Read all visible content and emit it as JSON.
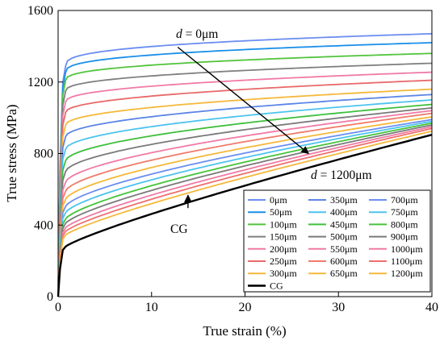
{
  "chart_data": {
    "type": "line",
    "xlabel": "True strain (%)",
    "ylabel": "True stress (MPa)",
    "xlim": [
      0,
      40
    ],
    "ylim": [
      0,
      1600
    ],
    "xticks": [
      0,
      10,
      20,
      30,
      40
    ],
    "yticks": [
      0,
      400,
      800,
      1200,
      1600
    ],
    "grid": false,
    "legend_position": "bottom-right",
    "legend_columns": 3,
    "annotations": [
      {
        "id": "top",
        "text_italic": "d",
        "text_rest": " = 0μm",
        "arrow_from": [
          12.8,
          1395
        ],
        "arrow_to": [
          26.8,
          800
        ]
      },
      {
        "id": "bottom",
        "text_italic": "d",
        "text_rest": " = 1200μm"
      },
      {
        "id": "cg",
        "text_italic": "",
        "text_rest": "CG",
        "arrow_from": [
          13.9,
          495
        ],
        "arrow_to": [
          13.9,
          567
        ]
      }
    ],
    "series": [
      {
        "name": "0μm",
        "color": "#6b8ef0",
        "yield": 1290,
        "end": 1470
      },
      {
        "name": "50μm",
        "color": "#1a8fe8",
        "yield": 1255,
        "end": 1420
      },
      {
        "name": "100μm",
        "color": "#52c43c",
        "yield": 1210,
        "end": 1360
      },
      {
        "name": "150μm",
        "color": "#808080",
        "yield": 1150,
        "end": 1305
      },
      {
        "name": "200μm",
        "color": "#f07aa6",
        "yield": 1090,
        "end": 1255
      },
      {
        "name": "250μm",
        "color": "#e86a6a",
        "yield": 1030,
        "end": 1210
      },
      {
        "name": "300μm",
        "color": "#f5b83a",
        "yield": 960,
        "end": 1160
      },
      {
        "name": "350μm",
        "color": "#5b85e6",
        "yield": 895,
        "end": 1130
      },
      {
        "name": "400μm",
        "color": "#4cc3ee",
        "yield": 825,
        "end": 1100
      },
      {
        "name": "450μm",
        "color": "#3fbf3c",
        "yield": 760,
        "end": 1075
      },
      {
        "name": "500μm",
        "color": "#7a7a7a",
        "yield": 700,
        "end": 1055
      },
      {
        "name": "550μm",
        "color": "#f07aa6",
        "yield": 640,
        "end": 1040
      },
      {
        "name": "600μm",
        "color": "#ef7b6b",
        "yield": 590,
        "end": 1025
      },
      {
        "name": "650μm",
        "color": "#f5b83a",
        "yield": 545,
        "end": 1005
      },
      {
        "name": "700μm",
        "color": "#6b8ef0",
        "yield": 505,
        "end": 990
      },
      {
        "name": "750μm",
        "color": "#4cc3ee",
        "yield": 470,
        "end": 980
      },
      {
        "name": "800μm",
        "color": "#45c43a",
        "yield": 435,
        "end": 970
      },
      {
        "name": "900μm",
        "color": "#7a7a7a",
        "yield": 410,
        "end": 960
      },
      {
        "name": "1000μm",
        "color": "#f07aa6",
        "yield": 385,
        "end": 950
      },
      {
        "name": "1100μm",
        "color": "#ef6f6f",
        "yield": 365,
        "end": 940
      },
      {
        "name": "1200μm",
        "color": "#f5b83a",
        "yield": 345,
        "end": 925
      },
      {
        "name": "CG",
        "color": "#000000",
        "yield": 280,
        "end": 905
      }
    ]
  }
}
